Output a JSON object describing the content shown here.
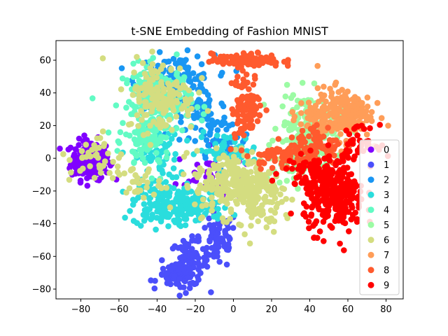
{
  "chart_data": {
    "type": "scatter",
    "title": "t-SNE Embedding of Fashion MNIST",
    "xlabel": "",
    "ylabel": "",
    "xlim": [
      -93,
      89
    ],
    "ylim": [
      -86,
      72
    ],
    "xticks": [
      -80,
      -60,
      -40,
      -20,
      0,
      20,
      40,
      60,
      80
    ],
    "yticks": [
      -80,
      -60,
      -40,
      -20,
      0,
      20,
      40,
      60
    ],
    "grid": false,
    "legend_position": "lower-right",
    "series": [
      {
        "name": "0",
        "color": "#8000ff",
        "clusters": [
          {
            "cx": -75,
            "cy": -1,
            "sx": 5,
            "sy": 6,
            "n": 200
          },
          {
            "cx": -12,
            "cy": -10,
            "sx": 9,
            "sy": 8,
            "n": 40
          }
        ]
      },
      {
        "name": "1",
        "color": "#4b4ffb",
        "clusters": [
          {
            "cx": -23,
            "cy": -64,
            "sx": 5,
            "sy": 7,
            "n": 90
          },
          {
            "cx": -8,
            "cy": -50,
            "sx": 5,
            "sy": 9,
            "n": 70
          },
          {
            "cx": -30,
            "cy": -72,
            "sx": 5,
            "sy": 3,
            "n": 50
          }
        ]
      },
      {
        "name": "2",
        "color": "#1996f3",
        "clusters": [
          {
            "cx": -30,
            "cy": 47,
            "sx": 10,
            "sy": 8,
            "n": 140
          },
          {
            "cx": -15,
            "cy": 25,
            "sx": 6,
            "sy": 8,
            "n": 60
          },
          {
            "cx": -5,
            "cy": 10,
            "sx": 8,
            "sy": 6,
            "n": 40
          }
        ]
      },
      {
        "name": "3",
        "color": "#2adddd",
        "clusters": [
          {
            "cx": -37,
            "cy": -28,
            "sx": 8,
            "sy": 7,
            "n": 140
          },
          {
            "cx": -20,
            "cy": -30,
            "sx": 9,
            "sy": 5,
            "n": 90
          },
          {
            "cx": -40,
            "cy": 0,
            "sx": 6,
            "sy": 9,
            "n": 70
          },
          {
            "cx": -3,
            "cy": 5,
            "sx": 8,
            "sy": 5,
            "n": 50
          }
        ]
      },
      {
        "name": "4",
        "color": "#62fbc4",
        "clusters": [
          {
            "cx": -40,
            "cy": 35,
            "sx": 9,
            "sy": 11,
            "n": 190
          },
          {
            "cx": -45,
            "cy": 10,
            "sx": 6,
            "sy": 9,
            "n": 80
          }
        ]
      },
      {
        "name": "5",
        "color": "#9cfba4",
        "clusters": [
          {
            "cx": 40,
            "cy": 20,
            "sx": 8,
            "sy": 10,
            "n": 160
          },
          {
            "cx": 33,
            "cy": 0,
            "sx": 6,
            "sy": 8,
            "n": 80
          }
        ]
      },
      {
        "name": "6",
        "color": "#d4dd80",
        "clusters": [
          {
            "cx": 0,
            "cy": -15,
            "sx": 10,
            "sy": 10,
            "n": 240
          },
          {
            "cx": -38,
            "cy": 38,
            "sx": 9,
            "sy": 11,
            "n": 150
          },
          {
            "cx": 15,
            "cy": -25,
            "sx": 6,
            "sy": 9,
            "n": 80
          },
          {
            "cx": -72,
            "cy": 0,
            "sx": 7,
            "sy": 8,
            "n": 40
          },
          {
            "cx": -50,
            "cy": -15,
            "sx": 6,
            "sy": 5,
            "n": 30
          }
        ]
      },
      {
        "name": "7",
        "color": "#ff9d58",
        "clusters": [
          {
            "cx": 58,
            "cy": 28,
            "sx": 7,
            "sy": 8,
            "n": 180
          },
          {
            "cx": 42,
            "cy": 25,
            "sx": 6,
            "sy": 5,
            "n": 50
          }
        ]
      },
      {
        "name": "8",
        "color": "#ff5a2e",
        "clusters": [
          {
            "cx": 7,
            "cy": 60,
            "sx": 9,
            "sy": 2,
            "n": 110
          },
          {
            "cx": 7,
            "cy": 32,
            "sx": 4,
            "sy": 10,
            "n": 100
          },
          {
            "cx": 28,
            "cy": 2,
            "sx": 10,
            "sy": 4,
            "n": 90
          },
          {
            "cx": 45,
            "cy": 10,
            "sx": 6,
            "sy": 5,
            "n": 50
          }
        ]
      },
      {
        "name": "9",
        "color": "#ff0000",
        "clusters": [
          {
            "cx": 53,
            "cy": -25,
            "sx": 8,
            "sy": 10,
            "n": 260
          },
          {
            "cx": 45,
            "cy": -8,
            "sx": 9,
            "sy": 5,
            "n": 100
          },
          {
            "cx": 65,
            "cy": 10,
            "sx": 5,
            "sy": 5,
            "n": 40
          }
        ]
      }
    ]
  }
}
